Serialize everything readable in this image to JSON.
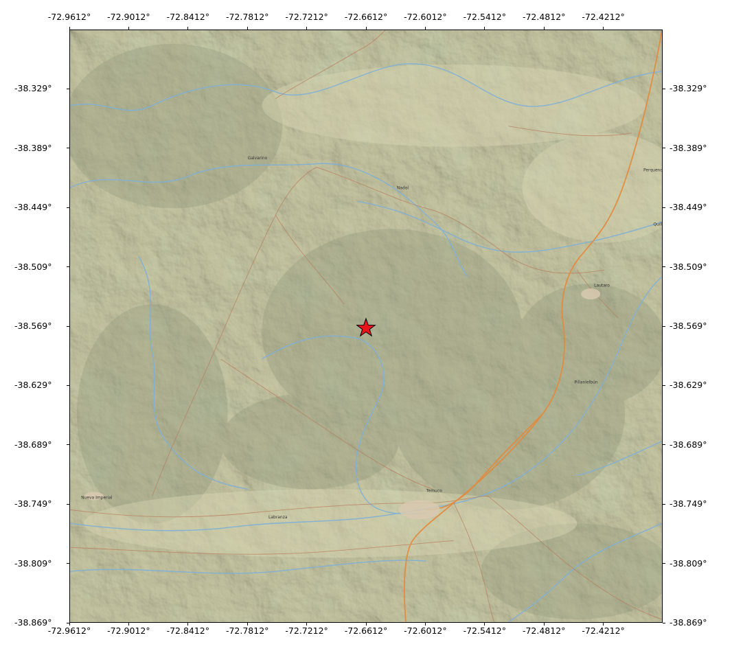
{
  "map": {
    "type": "topographic-basemap",
    "lon_ticks": [
      "-72.9612°",
      "-72.9012°",
      "-72.8412°",
      "-72.7812°",
      "-72.7212°",
      "-72.6612°",
      "-72.6012°",
      "-72.5412°",
      "-72.4812°",
      "-72.4212°"
    ],
    "lat_ticks": [
      "-38.329°",
      "-38.389°",
      "-38.449°",
      "-38.509°",
      "-38.569°",
      "-38.629°",
      "-38.689°",
      "-38.749°",
      "-38.809°",
      "-38.869°"
    ],
    "lon_range": [
      -72.9612,
      -72.3612
    ],
    "lat_range": [
      -38.869,
      -38.269
    ],
    "marker": {
      "symbol": "star",
      "color": "#e8141b",
      "lon": -72.6612,
      "lat": -38.571
    },
    "places": [
      {
        "name": "Galvarino",
        "lon": -72.7812,
        "lat": -38.4
      },
      {
        "name": "Nadol",
        "lon": -72.63,
        "lat": -38.43
      },
      {
        "name": "Perquenco",
        "lon": -72.38,
        "lat": -38.412
      },
      {
        "name": "Quillén",
        "lon": -72.37,
        "lat": -38.467
      },
      {
        "name": "Lautaro",
        "lon": -72.43,
        "lat": -38.529
      },
      {
        "name": "Pillanlelbún",
        "lon": -72.45,
        "lat": -38.627
      },
      {
        "name": "Nueva Imperial",
        "lon": -72.95,
        "lat": -38.744
      },
      {
        "name": "Labranza",
        "lon": -72.76,
        "lat": -38.764
      },
      {
        "name": "Temuco",
        "lon": -72.6,
        "lat": -38.737
      }
    ],
    "colors": {
      "land": "#c9c8a4",
      "relief_dark": "#8e977b",
      "vegetation": "#a7b88a",
      "river": "#7fb0d8",
      "highway": "#e38a3c",
      "road": "#b87a5a",
      "marker_fill": "#e8141b"
    }
  }
}
